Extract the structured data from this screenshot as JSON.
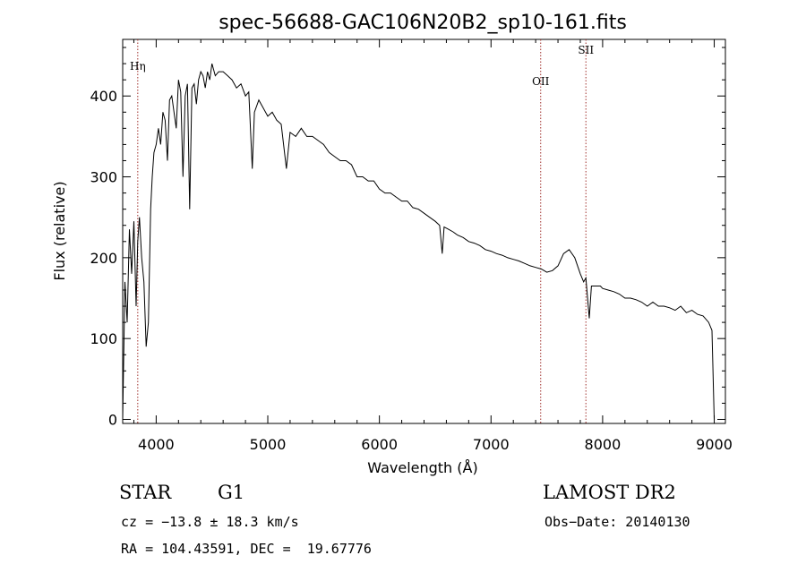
{
  "chart_data": {
    "type": "line",
    "title": "spec-56688-GAC106N20B2_sp10-161.fits",
    "xlabel": "Wavelength (Å)",
    "ylabel": "Flux (relative)",
    "xlim": [
      3700,
      9100
    ],
    "ylim": [
      -5,
      470
    ],
    "xticks": [
      4000,
      5000,
      6000,
      7000,
      8000,
      9000
    ],
    "yticks": [
      0,
      100,
      200,
      300,
      400
    ],
    "grid": false,
    "series": [
      {
        "x": [
          3700,
          3720,
          3740,
          3760,
          3780,
          3800,
          3820,
          3835,
          3850,
          3870,
          3890,
          3910,
          3930,
          3950,
          3965,
          3980,
          4000,
          4020,
          4040,
          4060,
          4080,
          4101,
          4120,
          4140,
          4160,
          4180,
          4200,
          4220,
          4240,
          4260,
          4280,
          4300,
          4320,
          4340,
          4360,
          4380,
          4400,
          4420,
          4440,
          4460,
          4480,
          4500,
          4530,
          4560,
          4600,
          4640,
          4680,
          4720,
          4760,
          4800,
          4830,
          4861,
          4880,
          4920,
          4960,
          5000,
          5040,
          5080,
          5120,
          5167,
          5200,
          5250,
          5300,
          5350,
          5400,
          5450,
          5500,
          5550,
          5600,
          5650,
          5700,
          5750,
          5800,
          5850,
          5900,
          5950,
          6000,
          6050,
          6100,
          6150,
          6200,
          6250,
          6300,
          6350,
          6400,
          6450,
          6500,
          6540,
          6563,
          6580,
          6620,
          6660,
          6700,
          6750,
          6800,
          6850,
          6900,
          6950,
          7000,
          7050,
          7100,
          7150,
          7200,
          7250,
          7300,
          7350,
          7400,
          7450,
          7500,
          7550,
          7600,
          7650,
          7700,
          7750,
          7800,
          7830,
          7850,
          7880,
          7900,
          7940,
          7980,
          8000,
          8050,
          8100,
          8150,
          8200,
          8250,
          8300,
          8350,
          8400,
          8450,
          8500,
          8550,
          8600,
          8650,
          8700,
          8750,
          8800,
          8850,
          8900,
          8950,
          8980,
          9000
        ],
        "y": [
          0,
          170,
          120,
          235,
          180,
          245,
          140,
          220,
          250,
          200,
          170,
          90,
          120,
          260,
          300,
          330,
          340,
          360,
          340,
          380,
          370,
          320,
          395,
          400,
          380,
          360,
          420,
          405,
          300,
          400,
          415,
          260,
          410,
          415,
          390,
          420,
          430,
          425,
          410,
          430,
          420,
          440,
          425,
          430,
          430,
          425,
          420,
          410,
          415,
          400,
          405,
          310,
          380,
          395,
          385,
          375,
          380,
          370,
          365,
          310,
          355,
          350,
          360,
          350,
          350,
          345,
          340,
          330,
          325,
          320,
          320,
          315,
          300,
          300,
          295,
          295,
          285,
          280,
          280,
          275,
          270,
          270,
          262,
          260,
          255,
          250,
          245,
          240,
          205,
          238,
          235,
          232,
          228,
          225,
          220,
          218,
          215,
          210,
          208,
          205,
          203,
          200,
          198,
          196,
          193,
          190,
          188,
          186,
          182,
          184,
          190,
          205,
          210,
          200,
          180,
          170,
          175,
          125,
          165,
          165,
          165,
          162,
          160,
          158,
          155,
          150,
          150,
          148,
          145,
          140,
          145,
          140,
          140,
          138,
          135,
          140,
          132,
          135,
          130,
          128,
          120,
          110,
          0
        ]
      }
    ],
    "annotations": [
      {
        "label": "Hη",
        "x": 3835
      },
      {
        "label": "OII",
        "x": 7445
      },
      {
        "label": "SII",
        "x": 7850
      }
    ]
  },
  "info": {
    "object_type": "STAR",
    "subclass": "G1",
    "survey": "LAMOST DR2",
    "cz": "cz = −13.8 ± 18.3 km/s",
    "obs_date": "Obs−Date: 20140130",
    "coords": "RA = 104.43591, DEC =  19.67776"
  },
  "colors": {
    "line": "#000000",
    "marker_line": "#a0302c"
  }
}
